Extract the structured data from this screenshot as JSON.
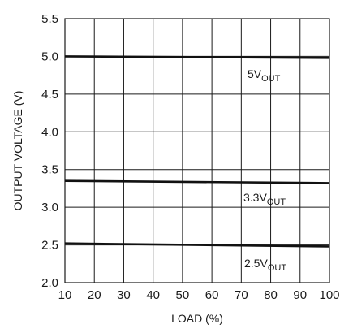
{
  "chart_data": {
    "type": "line",
    "xlabel": "LOAD (%)",
    "ylabel": "OUTPUT VOLTAGE (V)",
    "xlim": [
      10,
      100
    ],
    "ylim": [
      2.0,
      5.5
    ],
    "x_ticks": [
      10,
      20,
      30,
      40,
      50,
      60,
      70,
      80,
      90,
      100
    ],
    "y_ticks": [
      2.0,
      2.5,
      3.0,
      3.5,
      4.0,
      4.5,
      5.0,
      5.5
    ],
    "y_tick_labels": [
      "2.0",
      "2.5",
      "3.0",
      "3.5",
      "4.0",
      "4.5",
      "5.0",
      "5.5"
    ],
    "grid": true,
    "series": [
      {
        "label_main": "5V",
        "label_sub": "OUT",
        "x": [
          10,
          100
        ],
        "y": [
          5.0,
          4.98
        ]
      },
      {
        "label_main": "3.3V",
        "label_sub": "OUT",
        "x": [
          10,
          100
        ],
        "y": [
          3.35,
          3.32
        ]
      },
      {
        "label_main": "2.5V",
        "label_sub": "OUT",
        "x": [
          10,
          100
        ],
        "y": [
          2.52,
          2.48
        ]
      }
    ]
  }
}
